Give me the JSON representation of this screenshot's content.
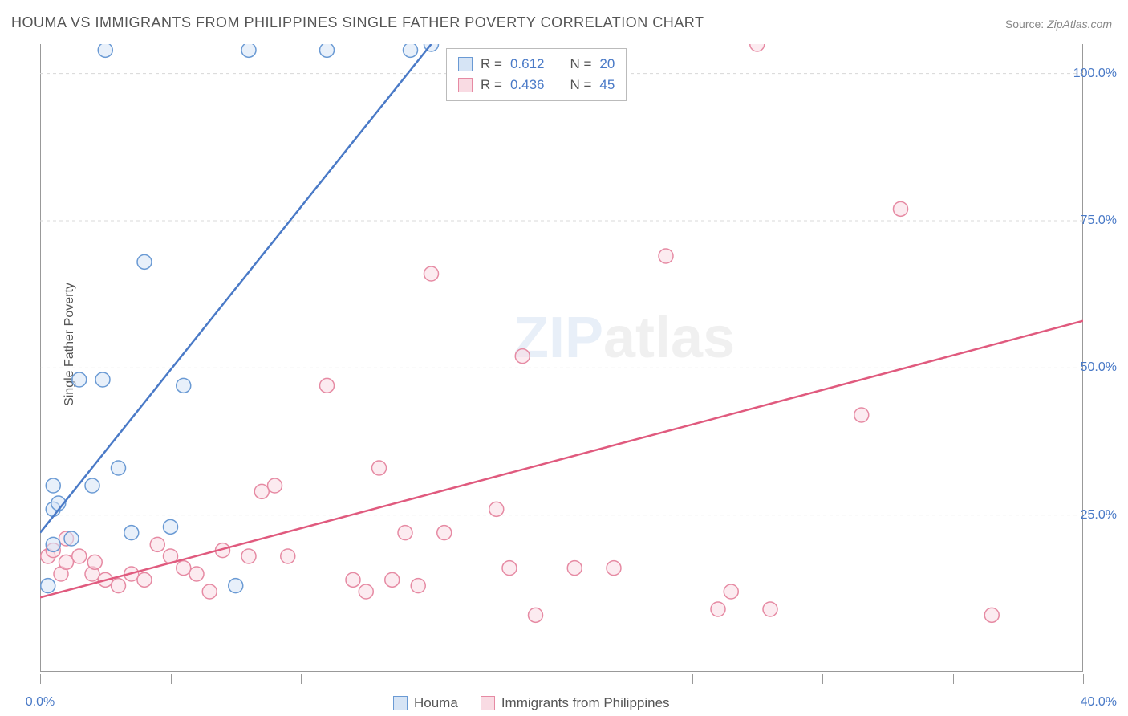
{
  "title": "HOUMA VS IMMIGRANTS FROM PHILIPPINES SINGLE FATHER POVERTY CORRELATION CHART",
  "source_label": "Source:",
  "source_value": "ZipAtlas.com",
  "y_axis_label": "Single Father Poverty",
  "watermark_a": "ZIP",
  "watermark_b": "atlas",
  "chart": {
    "type": "scatter",
    "background_color": "#ffffff",
    "grid_color": "#d8d8d8",
    "axis_color": "#999999",
    "xlim": [
      0,
      40
    ],
    "ylim": [
      0,
      105
    ],
    "y_ticks": [
      25,
      50,
      75,
      100
    ],
    "y_tick_labels": [
      "25.0%",
      "50.0%",
      "75.0%",
      "100.0%"
    ],
    "x_ticks": [
      0,
      5,
      10,
      15,
      20,
      25,
      30,
      35,
      40
    ],
    "x_tick_labels_shown": {
      "0": "0.0%",
      "40": "40.0%"
    },
    "y_tick_color": "#4a7ac7",
    "x_tick_color": "#4a7ac7",
    "marker_radius": 9,
    "marker_stroke_width": 1.5,
    "line_width": 2.5,
    "series": [
      {
        "name": "Houma",
        "fill_color": "#d6e4f5",
        "stroke_color": "#6a9ad4",
        "fill_opacity": 0.55,
        "line_color": "#4a7ac7",
        "regression": {
          "x1": 0,
          "y1": 22,
          "x2": 15,
          "y2": 105
        },
        "R": "0.612",
        "N": "20",
        "points": [
          [
            0.5,
            20
          ],
          [
            0.5,
            26
          ],
          [
            0.7,
            27
          ],
          [
            0.5,
            30
          ],
          [
            0.3,
            13
          ],
          [
            1.2,
            21
          ],
          [
            1.5,
            48
          ],
          [
            2.0,
            30
          ],
          [
            2.4,
            48
          ],
          [
            2.5,
            104
          ],
          [
            3.0,
            33
          ],
          [
            3.5,
            22
          ],
          [
            4.0,
            68
          ],
          [
            5.0,
            23
          ],
          [
            5.5,
            47
          ],
          [
            7.5,
            13
          ],
          [
            8.0,
            104
          ],
          [
            11.0,
            104
          ],
          [
            14.2,
            104
          ],
          [
            15.0,
            105
          ]
        ]
      },
      {
        "name": "Immigrants from Philippines",
        "fill_color": "#f9dbe3",
        "stroke_color": "#e68aa3",
        "fill_opacity": 0.55,
        "line_color": "#e05a7e",
        "regression": {
          "x1": 0,
          "y1": 11,
          "x2": 40,
          "y2": 58
        },
        "R": "0.436",
        "N": "45",
        "points": [
          [
            0.3,
            18
          ],
          [
            0.5,
            19
          ],
          [
            0.8,
            15
          ],
          [
            1.0,
            21
          ],
          [
            1.0,
            17
          ],
          [
            1.5,
            18
          ],
          [
            2.0,
            15
          ],
          [
            2.1,
            17
          ],
          [
            2.5,
            14
          ],
          [
            3.0,
            13
          ],
          [
            3.5,
            15
          ],
          [
            4.0,
            14
          ],
          [
            4.5,
            20
          ],
          [
            5.0,
            18
          ],
          [
            5.5,
            16
          ],
          [
            6.0,
            15
          ],
          [
            6.5,
            12
          ],
          [
            7.0,
            19
          ],
          [
            8.0,
            18
          ],
          [
            8.5,
            29
          ],
          [
            9.0,
            30
          ],
          [
            9.5,
            18
          ],
          [
            11.0,
            47
          ],
          [
            12.0,
            14
          ],
          [
            12.5,
            12
          ],
          [
            13.0,
            33
          ],
          [
            13.5,
            14
          ],
          [
            14.0,
            22
          ],
          [
            14.5,
            13
          ],
          [
            15.0,
            66
          ],
          [
            15.5,
            22
          ],
          [
            17.5,
            26
          ],
          [
            18.0,
            16
          ],
          [
            18.5,
            52
          ],
          [
            19.0,
            8
          ],
          [
            20.5,
            16
          ],
          [
            22.0,
            16
          ],
          [
            24.0,
            69
          ],
          [
            26.0,
            9
          ],
          [
            26.5,
            12
          ],
          [
            27.5,
            105
          ],
          [
            28.0,
            9
          ],
          [
            31.5,
            42
          ],
          [
            33.0,
            77
          ],
          [
            36.5,
            8
          ]
        ]
      }
    ]
  },
  "stats_box": {
    "rows": [
      {
        "swatch_fill": "#d6e4f5",
        "swatch_stroke": "#6a9ad4",
        "r_label": "R =",
        "r_val": "0.612",
        "n_label": "N =",
        "n_val": "20"
      },
      {
        "swatch_fill": "#f9dbe3",
        "swatch_stroke": "#e68aa3",
        "r_label": "R =",
        "r_val": "0.436",
        "n_label": "N =",
        "n_val": "45"
      }
    ]
  },
  "legend": {
    "items": [
      {
        "swatch_fill": "#d6e4f5",
        "swatch_stroke": "#6a9ad4",
        "label": "Houma"
      },
      {
        "swatch_fill": "#f9dbe3",
        "swatch_stroke": "#e68aa3",
        "label": "Immigrants from Philippines"
      }
    ]
  }
}
